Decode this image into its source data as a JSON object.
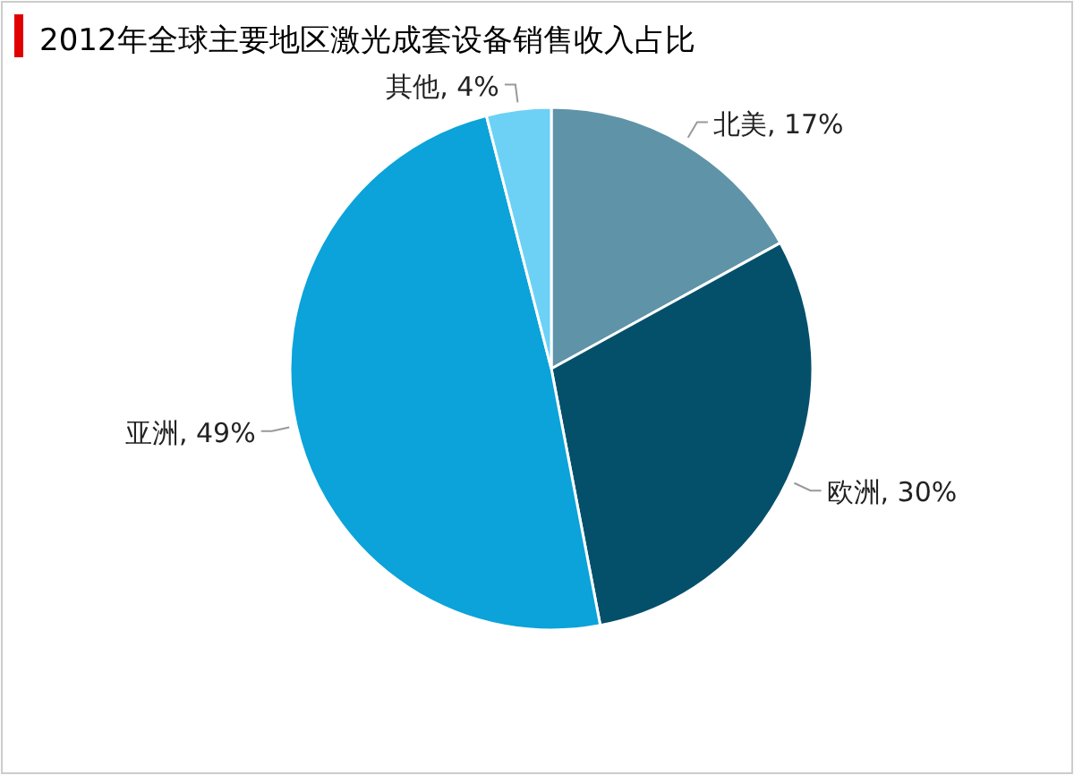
{
  "chart_data": {
    "type": "pie",
    "title": "2012年全球主要地区激光成套设备销售收入占比",
    "categories": [
      "北美",
      "欧洲",
      "亚洲",
      "其他"
    ],
    "values": [
      17,
      30,
      49,
      4
    ],
    "colors": [
      "#5f93a8",
      "#04506b",
      "#0ba3d9",
      "#6dd1f5"
    ],
    "value_labels": [
      ", 17%",
      ", 30%",
      ", 49%",
      ", 4%"
    ]
  }
}
